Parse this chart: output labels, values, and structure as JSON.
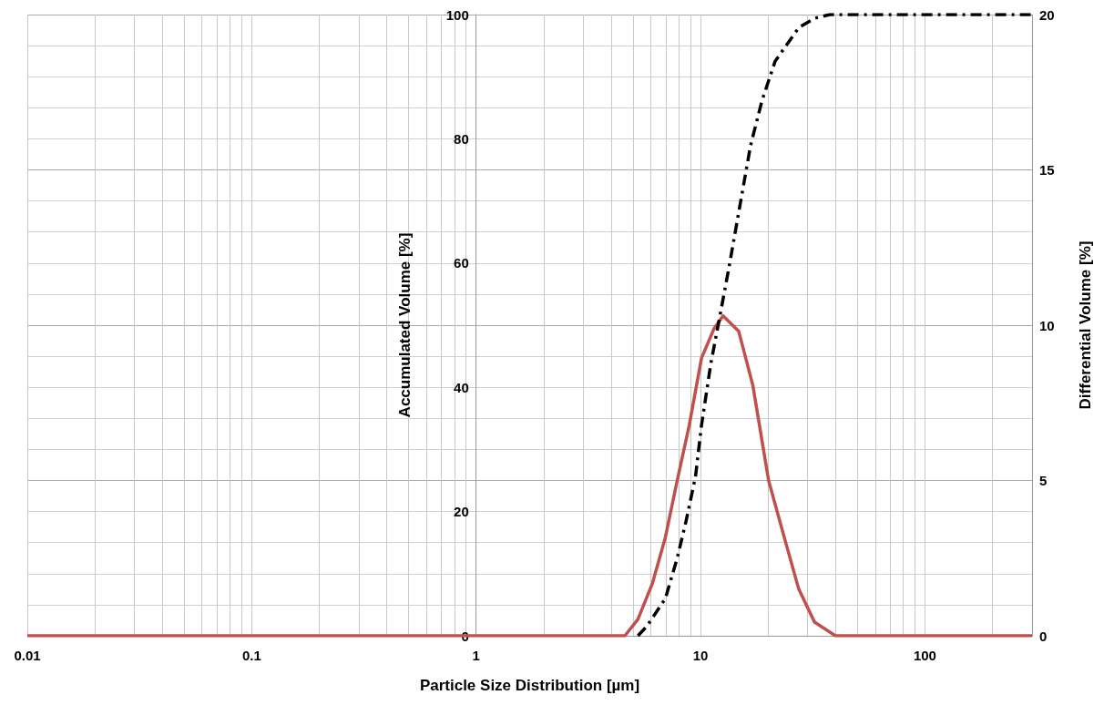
{
  "chart_data": {
    "type": "line",
    "xlabel": "Particle Size Distribution [µm]",
    "ylabel": "Accumulated Volume [%]",
    "y2label": "Differential Volume [%]",
    "log": "x",
    "grid": true,
    "marker": "none",
    "xlim": [
      0.01,
      300
    ],
    "xticks": [
      0.01,
      0.1,
      1,
      10,
      100
    ],
    "ylim": [
      0,
      100
    ],
    "yticks": [
      0,
      20,
      40,
      60,
      80,
      100
    ],
    "y2lim": [
      0,
      20
    ],
    "y2ticks": [
      0,
      5,
      10,
      15,
      20
    ],
    "series": [
      {
        "color": "#c0504d",
        "axis": "y2",
        "line_style": "solid",
        "x": [
          0.01,
          1,
          4.6,
          5.26,
          6.11,
          6.97,
          7.87,
          8.9,
          10.1,
          11.5,
          12.6,
          14.8,
          17.1,
          20.1,
          23.6,
          27.4,
          32.2,
          39.9,
          100,
          300
        ],
        "values": [
          0,
          0,
          0,
          0.53,
          1.7,
          3.17,
          5,
          6.77,
          8.94,
          9.9,
          10.3,
          9.8,
          8.06,
          5,
          3.17,
          1.5,
          0.44,
          0,
          0,
          0
        ]
      },
      {
        "color": "#000000",
        "axis": "y",
        "line_style": "dashdot",
        "x": [
          5.26,
          5.78,
          6.97,
          7.87,
          8.6,
          9.5,
          10.1,
          11.1,
          12.2,
          13.4,
          14.8,
          16.7,
          18.8,
          21.5,
          27.4,
          32.2,
          37.7,
          100,
          300
        ],
        "values": [
          0,
          1.6,
          6,
          12.5,
          18.3,
          25.7,
          33.9,
          43.7,
          51.5,
          59.4,
          68.2,
          78.9,
          86.2,
          92.5,
          97.9,
          99.4,
          100,
          100,
          100
        ]
      }
    ]
  }
}
